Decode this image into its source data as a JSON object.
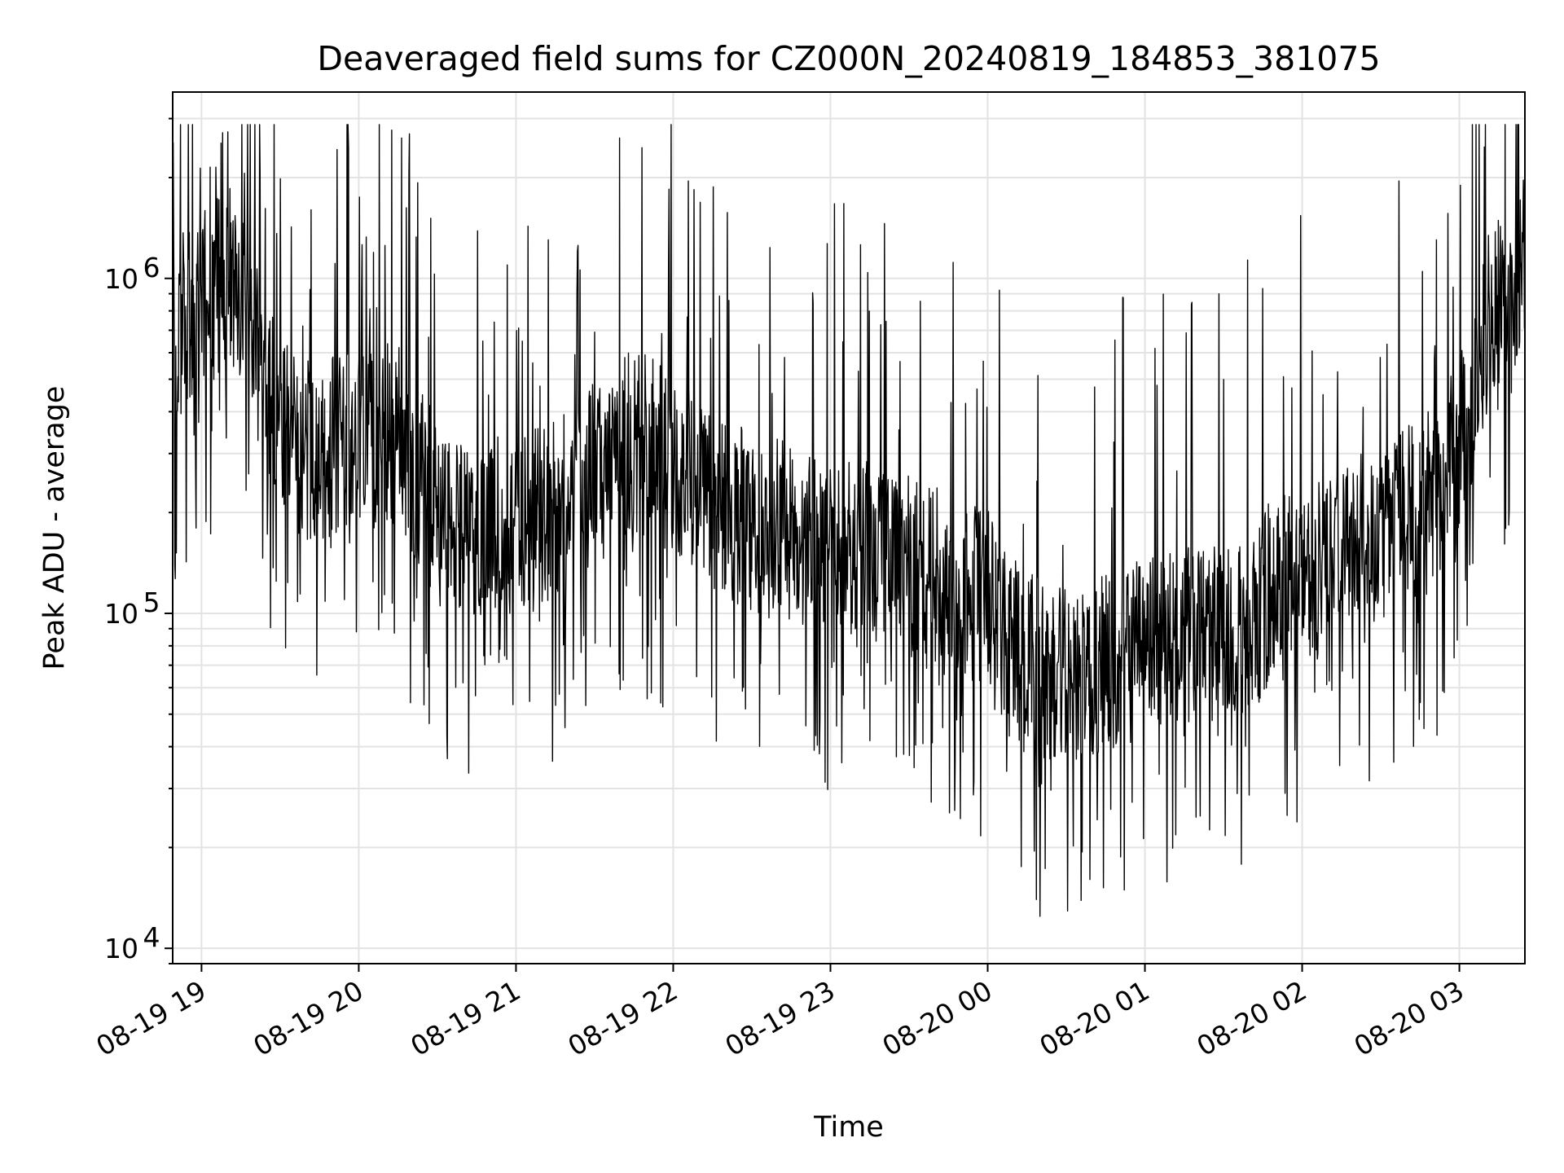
{
  "chart_data": {
    "type": "line",
    "title": "Deaveraged field sums for CZ000N_20240819_184853_381075",
    "xlabel": "Time",
    "ylabel": "Peak ADU - average",
    "yscale": "log",
    "ylim": [
      9000,
      3600000
    ],
    "xlim": [
      "2024-08-19 18:49",
      "2024-08-20 03:25"
    ],
    "grid": true,
    "legend": "none",
    "line_color": "#000000",
    "x_ticks": [
      {
        "value": "2024-08-19 19:00",
        "label": "08-19 19"
      },
      {
        "value": "2024-08-19 20:00",
        "label": "08-19 20"
      },
      {
        "value": "2024-08-19 21:00",
        "label": "08-19 21"
      },
      {
        "value": "2024-08-19 22:00",
        "label": "08-19 22"
      },
      {
        "value": "2024-08-19 23:00",
        "label": "08-19 23"
      },
      {
        "value": "2024-08-20 00:00",
        "label": "08-20 00"
      },
      {
        "value": "2024-08-20 01:00",
        "label": "08-20 01"
      },
      {
        "value": "2024-08-20 02:00",
        "label": "08-20 02"
      },
      {
        "value": "2024-08-20 03:00",
        "label": "08-20 03"
      }
    ],
    "y_ticks": [
      {
        "value": 10000,
        "base": "10",
        "exp": "4"
      },
      {
        "value": 100000,
        "base": "10",
        "exp": "5"
      },
      {
        "value": 1000000,
        "base": "10",
        "exp": "6"
      }
    ],
    "series": [
      {
        "x": [
          "2024-08-19 18:49",
          "2024-08-19 19:00",
          "2024-08-19 19:10",
          "2024-08-19 19:17",
          "2024-08-19 19:25",
          "2024-08-19 19:35",
          "2024-08-19 19:45",
          "2024-08-19 20:00",
          "2024-08-19 20:15",
          "2024-08-19 20:30",
          "2024-08-19 20:45",
          "2024-08-19 21:00",
          "2024-08-19 21:15",
          "2024-08-19 21:30",
          "2024-08-19 21:45",
          "2024-08-19 22:00",
          "2024-08-19 22:15",
          "2024-08-19 22:30",
          "2024-08-19 22:45",
          "2024-08-19 23:00",
          "2024-08-19 23:15",
          "2024-08-19 23:30",
          "2024-08-19 23:45",
          "2024-08-20 00:00",
          "2024-08-20 00:15",
          "2024-08-20 00:30",
          "2024-08-20 00:45",
          "2024-08-20 01:00",
          "2024-08-20 01:15",
          "2024-08-20 01:30",
          "2024-08-20 01:45",
          "2024-08-20 02:00",
          "2024-08-20 02:15",
          "2024-08-20 02:30",
          "2024-08-20 02:45",
          "2024-08-20 03:00",
          "2024-08-20 03:10",
          "2024-08-20 03:25"
        ],
        "y": [
          700000,
          850000,
          1000000,
          900000,
          450000,
          330000,
          300000,
          330000,
          350000,
          200000,
          170000,
          190000,
          200000,
          260000,
          330000,
          280000,
          220000,
          190000,
          170000,
          160000,
          150000,
          140000,
          130000,
          110000,
          70000,
          65000,
          70000,
          80000,
          90000,
          85000,
          110000,
          130000,
          150000,
          180000,
          200000,
          300000,
          700000,
          1100000
        ]
      }
    ]
  }
}
